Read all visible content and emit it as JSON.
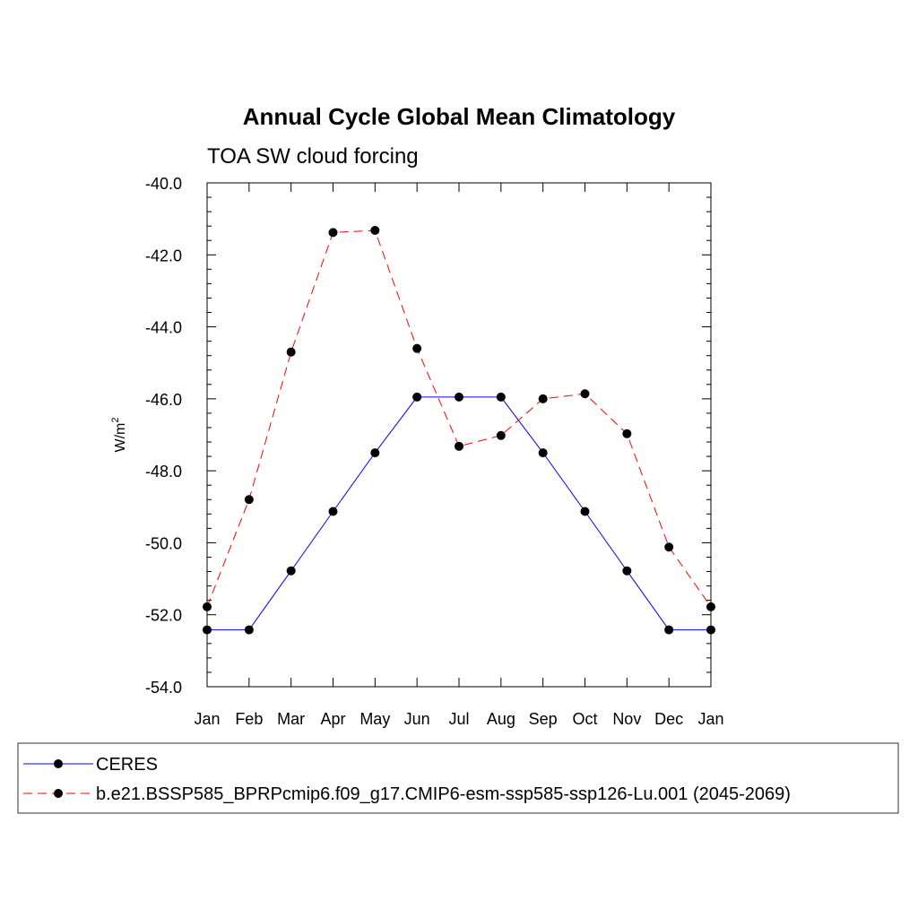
{
  "chart_data": {
    "type": "line",
    "title": "Annual Cycle Global Mean Climatology",
    "subtitle": "TOA SW cloud forcing",
    "xlabel": "",
    "ylabel": "W/m",
    "ylabel_superscript": "2",
    "ylim": [
      -54.0,
      -40.0
    ],
    "yticks": [
      "-40.0",
      "-42.0",
      "-44.0",
      "-46.0",
      "-48.0",
      "-50.0",
      "-52.0",
      "-54.0"
    ],
    "categories": [
      "Jan",
      "Feb",
      "Mar",
      "Apr",
      "May",
      "Jun",
      "Jul",
      "Aug",
      "Sep",
      "Oct",
      "Nov",
      "Dec",
      "Jan"
    ],
    "grid": false,
    "legend_position": "bottom",
    "series": [
      {
        "name": "CERES",
        "color": "#0000ff",
        "style": "solid",
        "values": [
          -52.42,
          -52.42,
          -50.78,
          -49.13,
          -47.5,
          -45.95,
          -45.95,
          -45.95,
          -47.5,
          -49.13,
          -50.78,
          -52.42,
          -52.42
        ]
      },
      {
        "name": "b.e21.BSSP585_BPRPcmip6.f09_g17.CMIP6-esm-ssp585-ssp126-Lu.001 (2045-2069)",
        "color": "#ff0000",
        "style": "dashed",
        "values": [
          -51.78,
          -48.8,
          -44.7,
          -41.38,
          -41.32,
          -44.6,
          -47.32,
          -47.02,
          -46.0,
          -45.86,
          -46.97,
          -50.12,
          -51.78
        ]
      }
    ]
  }
}
